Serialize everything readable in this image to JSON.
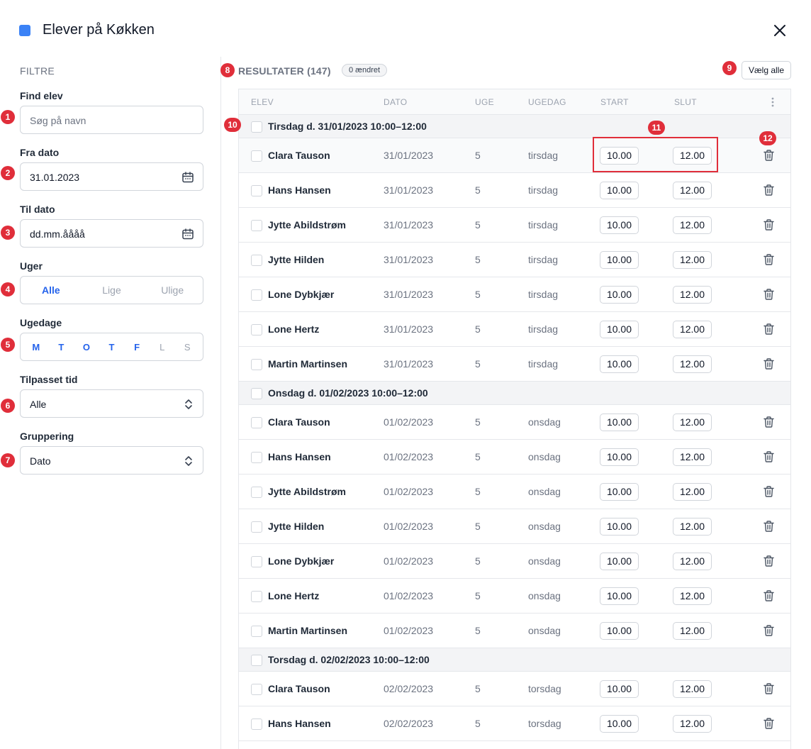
{
  "header": {
    "title": "Elever på Køkken",
    "accent": "#3b82f6"
  },
  "filters": {
    "title": "FILTRE",
    "find_label": "Find elev",
    "find_placeholder": "Søg på navn",
    "from_label": "Fra dato",
    "from_value": "31.01.2023",
    "to_label": "Til dato",
    "to_value": "dd.mm.åååå",
    "weeks_label": "Uger",
    "weeks_options": [
      "Alle",
      "Lige",
      "Ulige"
    ],
    "weeks_selected": "Alle",
    "weekdays_label": "Ugedage",
    "weekdays": [
      {
        "label": "M",
        "on": true
      },
      {
        "label": "T",
        "on": true
      },
      {
        "label": "O",
        "on": true
      },
      {
        "label": "T",
        "on": true
      },
      {
        "label": "F",
        "on": true
      },
      {
        "label": "L",
        "on": false
      },
      {
        "label": "S",
        "on": false
      }
    ],
    "adjusted_label": "Tilpasset tid",
    "adjusted_value": "Alle",
    "grouping_label": "Gruppering",
    "grouping_value": "Dato"
  },
  "results": {
    "title": "RESULTATER (147)",
    "changed": "0 ændret",
    "select_all": "Vælg alle",
    "columns": [
      "ELEV",
      "DATO",
      "UGE",
      "UGEDAG",
      "START",
      "SLUT"
    ],
    "groups": [
      {
        "label": "Tirsdag d. 31/01/2023 10:00–12:00",
        "rows": [
          {
            "name": "Clara Tauson",
            "date": "31/01/2023",
            "week": "5",
            "weekday": "tirsdag",
            "start": "10.00",
            "end": "12.00"
          },
          {
            "name": "Hans Hansen",
            "date": "31/01/2023",
            "week": "5",
            "weekday": "tirsdag",
            "start": "10.00",
            "end": "12.00"
          },
          {
            "name": "Jytte Abildstrøm",
            "date": "31/01/2023",
            "week": "5",
            "weekday": "tirsdag",
            "start": "10.00",
            "end": "12.00"
          },
          {
            "name": "Jytte Hilden",
            "date": "31/01/2023",
            "week": "5",
            "weekday": "tirsdag",
            "start": "10.00",
            "end": "12.00"
          },
          {
            "name": "Lone Dybkjær",
            "date": "31/01/2023",
            "week": "5",
            "weekday": "tirsdag",
            "start": "10.00",
            "end": "12.00"
          },
          {
            "name": "Lone Hertz",
            "date": "31/01/2023",
            "week": "5",
            "weekday": "tirsdag",
            "start": "10.00",
            "end": "12.00"
          },
          {
            "name": "Martin Martinsen",
            "date": "31/01/2023",
            "week": "5",
            "weekday": "tirsdag",
            "start": "10.00",
            "end": "12.00"
          }
        ]
      },
      {
        "label": "Onsdag d. 01/02/2023 10:00–12:00",
        "rows": [
          {
            "name": "Clara Tauson",
            "date": "01/02/2023",
            "week": "5",
            "weekday": "onsdag",
            "start": "10.00",
            "end": "12.00"
          },
          {
            "name": "Hans Hansen",
            "date": "01/02/2023",
            "week": "5",
            "weekday": "onsdag",
            "start": "10.00",
            "end": "12.00"
          },
          {
            "name": "Jytte Abildstrøm",
            "date": "01/02/2023",
            "week": "5",
            "weekday": "onsdag",
            "start": "10.00",
            "end": "12.00"
          },
          {
            "name": "Jytte Hilden",
            "date": "01/02/2023",
            "week": "5",
            "weekday": "onsdag",
            "start": "10.00",
            "end": "12.00"
          },
          {
            "name": "Lone Dybkjær",
            "date": "01/02/2023",
            "week": "5",
            "weekday": "onsdag",
            "start": "10.00",
            "end": "12.00"
          },
          {
            "name": "Lone Hertz",
            "date": "01/02/2023",
            "week": "5",
            "weekday": "onsdag",
            "start": "10.00",
            "end": "12.00"
          },
          {
            "name": "Martin Martinsen",
            "date": "01/02/2023",
            "week": "5",
            "weekday": "onsdag",
            "start": "10.00",
            "end": "12.00"
          }
        ]
      },
      {
        "label": "Torsdag d. 02/02/2023 10:00–12:00",
        "rows": [
          {
            "name": "Clara Tauson",
            "date": "02/02/2023",
            "week": "5",
            "weekday": "torsdag",
            "start": "10.00",
            "end": "12.00"
          },
          {
            "name": "Hans Hansen",
            "date": "02/02/2023",
            "week": "5",
            "weekday": "torsdag",
            "start": "10.00",
            "end": "12.00"
          }
        ]
      }
    ]
  },
  "annotations": [
    "1",
    "2",
    "3",
    "4",
    "5",
    "6",
    "7",
    "8",
    "9",
    "10",
    "11",
    "12"
  ]
}
